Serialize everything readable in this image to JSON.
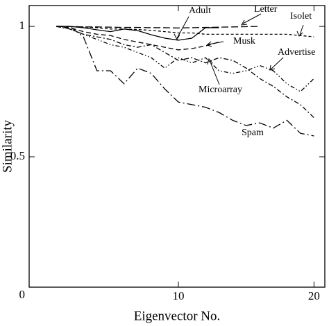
{
  "chart_data": {
    "type": "line",
    "xlabel": "Eigenvector No.",
    "ylabel": "Similarity",
    "x": [
      1,
      2,
      3,
      4,
      5,
      6,
      7,
      8,
      9,
      10,
      11,
      12,
      13,
      14,
      15,
      16,
      17,
      18,
      19,
      20
    ],
    "xlim": [
      -1,
      20.8
    ],
    "xticks": [
      10,
      20
    ],
    "ylim": [
      0,
      1.08
    ],
    "yticks": [
      0,
      0.5,
      1
    ],
    "series": [
      {
        "name": "Adult",
        "color": "#000000",
        "linestyle": "solid",
        "values": [
          1,
          1,
          0.995,
          0.987,
          0.98,
          0.99,
          0.984,
          0.968,
          0.955,
          0.947,
          0.955,
          0.995,
          0.995,
          null,
          null,
          null,
          null,
          null,
          null,
          null
        ]
      },
      {
        "name": "Letter",
        "color": "#000000",
        "linestyle": "longdash",
        "values": [
          1,
          1,
          0.998,
          0.998,
          0.997,
          0.996,
          0.996,
          0.995,
          0.995,
          0.994,
          0.995,
          0.996,
          0.997,
          0.998,
          0.999,
          1,
          null,
          null,
          null,
          null
        ]
      },
      {
        "name": "Isolet",
        "color": "#000000",
        "linestyle": "shortdash",
        "values": [
          1,
          1,
          0.998,
          0.995,
          0.99,
          0.99,
          0.988,
          0.985,
          0.98,
          0.975,
          0.975,
          0.97,
          0.97,
          0.97,
          0.97,
          0.97,
          0.97,
          0.97,
          0.965,
          0.96
        ]
      },
      {
        "name": "Musk",
        "color": "#000000",
        "linestyle": "dashed",
        "values": [
          1,
          0.995,
          0.98,
          0.97,
          0.965,
          0.95,
          0.94,
          0.93,
          0.92,
          0.91,
          0.915,
          0.925,
          0.94,
          null,
          null,
          null,
          null,
          null,
          null,
          null
        ]
      },
      {
        "name": "Advertise",
        "color": "#000000",
        "linestyle": "dashdotdot",
        "values": [
          1,
          0.99,
          0.97,
          0.95,
          0.93,
          0.92,
          0.9,
          0.88,
          0.84,
          0.88,
          0.86,
          0.88,
          0.83,
          0.82,
          0.83,
          0.85,
          0.83,
          0.78,
          0.75,
          0.8
        ]
      },
      {
        "name": "Microarray",
        "color": "#000000",
        "linestyle": "dashdot",
        "values": [
          1,
          0.99,
          0.97,
          0.96,
          0.95,
          0.93,
          0.92,
          0.93,
          0.9,
          0.87,
          0.88,
          0.86,
          0.88,
          0.87,
          0.84,
          0.8,
          0.77,
          0.73,
          0.7,
          0.65
        ]
      },
      {
        "name": "Spam",
        "color": "#000000",
        "linestyle": "longdashdot",
        "values": [
          1,
          1,
          0.96,
          0.83,
          0.83,
          0.78,
          0.84,
          0.82,
          0.76,
          0.71,
          0.7,
          0.69,
          0.67,
          0.64,
          0.62,
          0.63,
          0.61,
          0.64,
          0.59,
          0.58
        ]
      }
    ]
  }
}
